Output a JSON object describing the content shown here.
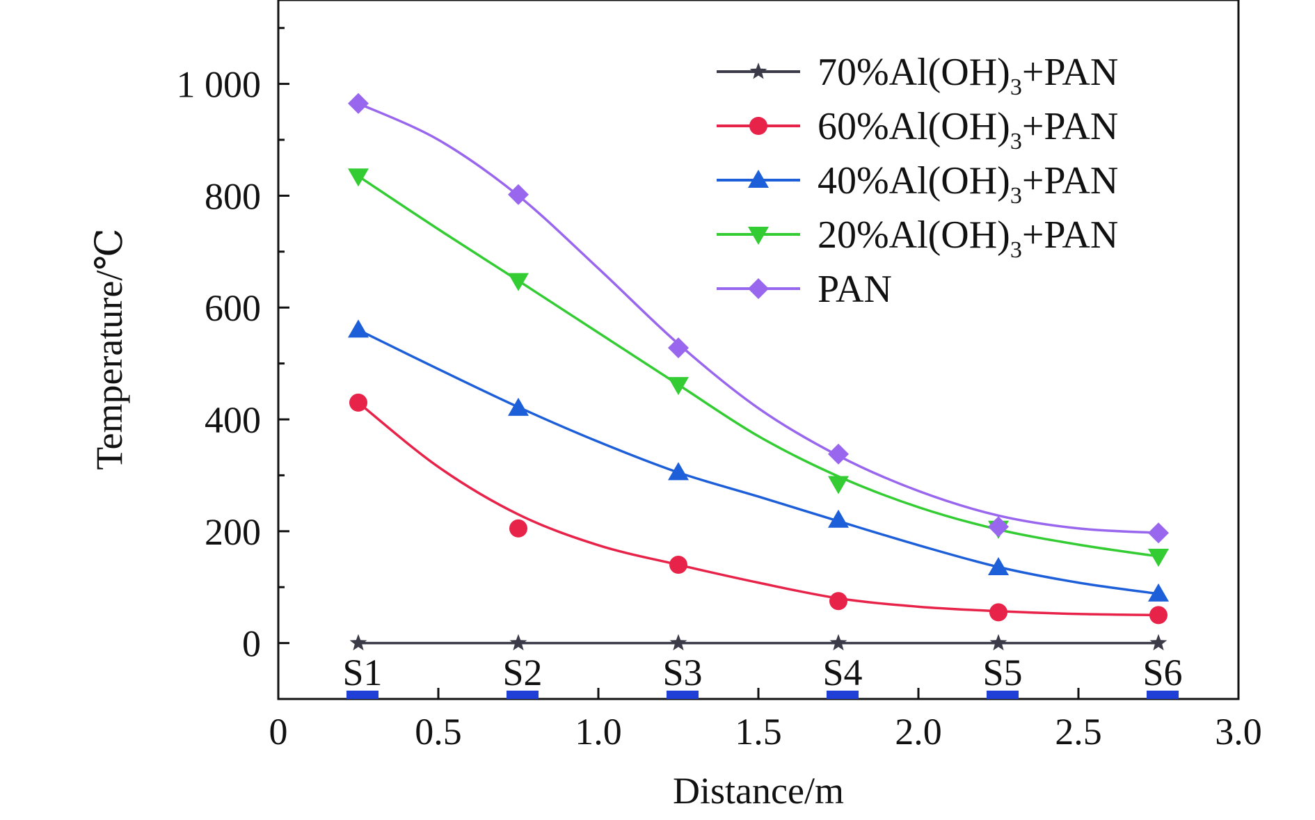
{
  "chart_data": {
    "type": "line",
    "title": "",
    "xlabel": "Distance/m",
    "ylabel": "Temperature/℃",
    "xlim": [
      0,
      3.0
    ],
    "ylim": [
      -100,
      1150
    ],
    "x_ticks": [
      0,
      0.5,
      1.0,
      1.5,
      2.0,
      2.5,
      3.0
    ],
    "x_tick_labels": [
      "0",
      "0.5",
      "1.0",
      "1.5",
      "2.0",
      "2.5",
      "3.0"
    ],
    "y_ticks": [
      0,
      200,
      400,
      600,
      800,
      1000
    ],
    "y_tick_labels": [
      "0",
      "200",
      "400",
      "600",
      "800",
      "1 000"
    ],
    "grid": false,
    "legend_position": "top-right",
    "stations": [
      {
        "label": "S1",
        "x": 0.25
      },
      {
        "label": "S2",
        "x": 0.75
      },
      {
        "label": "S3",
        "x": 1.25
      },
      {
        "label": "S4",
        "x": 1.75
      },
      {
        "label": "S5",
        "x": 2.25
      },
      {
        "label": "S6",
        "x": 2.75
      }
    ],
    "station_marker_color": "#1f3fd6",
    "x": [
      0.25,
      0.75,
      1.25,
      1.75,
      2.25,
      2.75
    ],
    "series": [
      {
        "name_prefix": "70%Al(OH)",
        "name_sub": "3",
        "name_suffix": "+PAN",
        "color": "#3a3a48",
        "marker": "star",
        "values": [
          0,
          0,
          0,
          0,
          0,
          0
        ],
        "fit": [
          [
            0.25,
            0
          ],
          [
            2.75,
            0
          ]
        ]
      },
      {
        "name_prefix": "60%Al(OH)",
        "name_sub": "3",
        "name_suffix": "+PAN",
        "color": "#e8234a",
        "marker": "circle",
        "values": [
          430,
          205,
          140,
          75,
          55,
          50
        ],
        "fit": [
          [
            0.25,
            430
          ],
          [
            0.5,
            315
          ],
          [
            0.75,
            230
          ],
          [
            1.0,
            175
          ],
          [
            1.25,
            140
          ],
          [
            1.5,
            108
          ],
          [
            1.75,
            80
          ],
          [
            2.0,
            65
          ],
          [
            2.25,
            57
          ],
          [
            2.5,
            52
          ],
          [
            2.75,
            50
          ]
        ]
      },
      {
        "name_prefix": "40%Al(OH)",
        "name_sub": "3",
        "name_suffix": "+PAN",
        "color": "#1d5fd8",
        "marker": "triangle-up",
        "values": [
          560,
          420,
          305,
          220,
          135,
          88
        ],
        "fit": [
          [
            0.25,
            560
          ],
          [
            0.5,
            490
          ],
          [
            0.75,
            422
          ],
          [
            1.0,
            360
          ],
          [
            1.25,
            305
          ],
          [
            1.5,
            262
          ],
          [
            1.75,
            218
          ],
          [
            2.0,
            175
          ],
          [
            2.25,
            136
          ],
          [
            2.5,
            108
          ],
          [
            2.75,
            88
          ]
        ]
      },
      {
        "name_prefix": "20%Al(OH)",
        "name_sub": "3",
        "name_suffix": "+PAN",
        "color": "#33cc33",
        "marker": "triangle-down",
        "values": [
          835,
          648,
          462,
          285,
          205,
          155
        ],
        "fit": [
          [
            0.25,
            835
          ],
          [
            0.5,
            740
          ],
          [
            0.75,
            648
          ],
          [
            1.0,
            555
          ],
          [
            1.25,
            462
          ],
          [
            1.5,
            370
          ],
          [
            1.75,
            298
          ],
          [
            2.0,
            243
          ],
          [
            2.25,
            203
          ],
          [
            2.5,
            176
          ],
          [
            2.75,
            155
          ]
        ]
      },
      {
        "name_prefix": "PAN",
        "name_sub": "",
        "name_suffix": "",
        "color": "#9966ee",
        "marker": "diamond",
        "values": [
          965,
          802,
          528,
          338,
          208,
          197
        ],
        "fit": [
          [
            0.25,
            965
          ],
          [
            0.5,
            900
          ],
          [
            0.75,
            800
          ],
          [
            1.0,
            670
          ],
          [
            1.25,
            535
          ],
          [
            1.5,
            420
          ],
          [
            1.75,
            335
          ],
          [
            2.0,
            272
          ],
          [
            2.25,
            228
          ],
          [
            2.5,
            205
          ],
          [
            2.75,
            197
          ]
        ]
      }
    ]
  }
}
